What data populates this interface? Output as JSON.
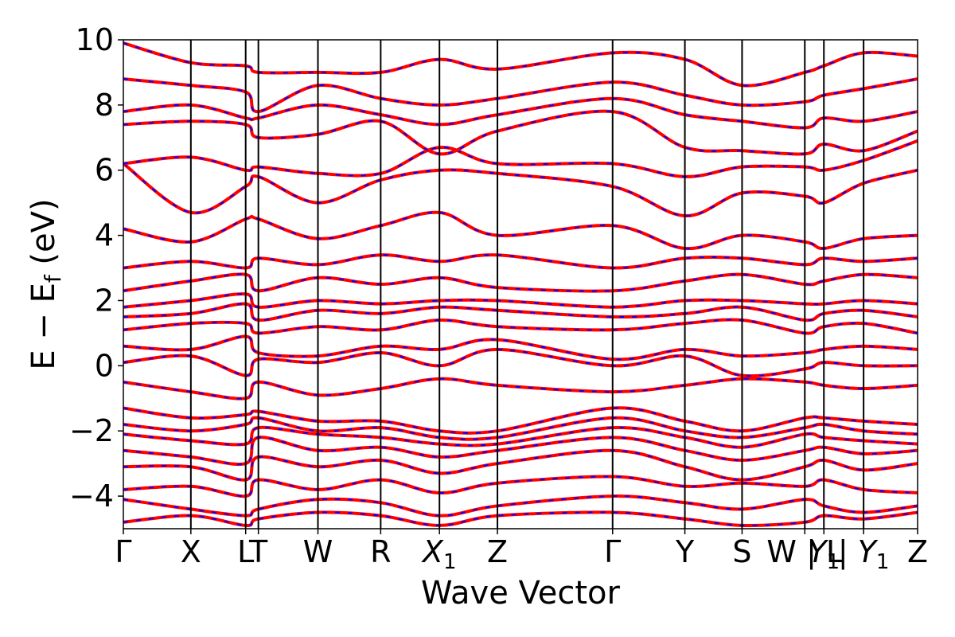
{
  "chart_data": {
    "type": "line",
    "title": "",
    "xlabel": "Wave Vector",
    "ylabel": "E  −  E_f (eV)",
    "ylabel_parts": {
      "main": "E  −  E",
      "sub": "f",
      "unit": " (eV)"
    },
    "ylim": [
      -5,
      10
    ],
    "yticks": [
      -4,
      -2,
      0,
      2,
      4,
      6,
      8,
      10
    ],
    "ytick_labels": [
      "−4",
      "−2",
      "0",
      "2",
      "4",
      "6",
      "8",
      "10"
    ],
    "xlim": [
      0,
      1
    ],
    "kpoints": [
      {
        "label": "Γ",
        "sub": "",
        "x": 0.0
      },
      {
        "label": "X",
        "sub": "",
        "x": 0.085
      },
      {
        "label": "L",
        "sub": "",
        "x": 0.154
      },
      {
        "label": "T",
        "sub": "",
        "x": 0.17
      },
      {
        "label": "W",
        "sub": "",
        "x": 0.245
      },
      {
        "label": "R",
        "sub": "",
        "x": 0.324
      },
      {
        "label": "X",
        "sub": "1",
        "x": 0.398
      },
      {
        "label": "Z",
        "sub": "",
        "x": 0.471
      },
      {
        "label": "Γ",
        "sub": "",
        "x": 0.616
      },
      {
        "label": "Y",
        "sub": "",
        "x": 0.707
      },
      {
        "label": "S",
        "sub": "",
        "x": 0.779
      },
      {
        "label": "W | L",
        "sub": "",
        "x": 0.858
      },
      {
        "label": "Y",
        "sub": "1",
        "x": 0.882
      },
      {
        "label": "| Y",
        "sub": "1",
        "x": 0.932
      },
      {
        "label": "Z",
        "sub": "",
        "x": 1.0
      }
    ],
    "series_styles": [
      {
        "name": "",
        "color": "#ff0000",
        "style": "solid"
      },
      {
        "name": "",
        "color": "#0000ff",
        "style": "dashed"
      }
    ],
    "bands": [
      [
        -4.8,
        -4.6,
        -4.9,
        -4.7,
        -4.5,
        -4.6,
        -4.9,
        -4.6,
        -4.5,
        -4.7,
        -4.9,
        -4.8,
        -4.6,
        -4.7,
        -4.5
      ],
      [
        -4.1,
        -4.4,
        -4.6,
        -4.4,
        -4.1,
        -4.2,
        -4.6,
        -4.3,
        -4.0,
        -4.2,
        -4.4,
        -4.1,
        -4.3,
        -4.5,
        -4.3
      ],
      [
        -3.8,
        -3.7,
        -4.0,
        -3.5,
        -3.8,
        -3.5,
        -3.9,
        -3.6,
        -3.4,
        -3.7,
        -3.6,
        -3.7,
        -3.5,
        -3.8,
        -3.9
      ],
      [
        -3.1,
        -3.1,
        -3.5,
        -2.8,
        -3.1,
        -2.9,
        -3.3,
        -3.0,
        -2.6,
        -3.1,
        -3.5,
        -3.1,
        -2.9,
        -3.2,
        -3.0
      ],
      [
        -2.6,
        -2.8,
        -3.0,
        -2.2,
        -2.6,
        -2.5,
        -2.8,
        -2.6,
        -2.2,
        -2.6,
        -2.9,
        -2.6,
        -2.5,
        -2.7,
        -2.6
      ],
      [
        -2.1,
        -2.3,
        -2.4,
        -1.9,
        -2.1,
        -2.2,
        -2.4,
        -2.4,
        -1.9,
        -2.2,
        -2.5,
        -2.1,
        -2.2,
        -2.3,
        -2.4
      ],
      [
        -1.8,
        -2.0,
        -1.8,
        -1.6,
        -2.0,
        -1.9,
        -2.2,
        -2.2,
        -1.6,
        -2.0,
        -2.2,
        -1.9,
        -1.8,
        -2.0,
        -2.1
      ],
      [
        -1.3,
        -1.6,
        -1.5,
        -1.4,
        -1.7,
        -1.7,
        -2.0,
        -2.0,
        -1.3,
        -1.7,
        -2.0,
        -1.6,
        -1.6,
        -1.7,
        -1.8
      ],
      [
        -0.5,
        -0.8,
        -1.0,
        -0.5,
        -0.9,
        -0.7,
        -0.4,
        -0.6,
        -0.8,
        -0.6,
        -0.4,
        -0.5,
        -0.6,
        -0.7,
        -0.6
      ],
      [
        0.1,
        0.3,
        -0.3,
        0.2,
        0.1,
        0.4,
        0.0,
        0.5,
        0.0,
        0.3,
        -0.3,
        -0.1,
        0.1,
        0.0,
        0.0
      ],
      [
        0.6,
        0.5,
        0.9,
        0.4,
        0.3,
        0.6,
        0.5,
        0.8,
        0.2,
        0.5,
        0.3,
        0.4,
        0.5,
        0.6,
        0.5
      ],
      [
        1.1,
        1.3,
        1.3,
        1.0,
        1.2,
        1.1,
        1.4,
        1.2,
        1.1,
        1.3,
        1.4,
        1.0,
        1.2,
        1.3,
        1.0
      ],
      [
        1.5,
        1.6,
        1.9,
        1.4,
        1.7,
        1.6,
        1.8,
        1.7,
        1.5,
        1.6,
        1.8,
        1.4,
        1.6,
        1.7,
        1.5
      ],
      [
        1.8,
        2.0,
        2.2,
        1.8,
        2.0,
        1.9,
        2.0,
        2.0,
        1.8,
        2.0,
        2.0,
        1.9,
        1.9,
        2.0,
        1.9
      ],
      [
        2.3,
        2.6,
        2.8,
        2.3,
        2.7,
        2.5,
        2.7,
        2.4,
        2.3,
        2.6,
        2.8,
        2.5,
        2.6,
        2.8,
        2.7
      ],
      [
        3.0,
        3.2,
        3.0,
        3.3,
        3.1,
        3.4,
        3.2,
        3.4,
        3.0,
        3.3,
        3.3,
        3.1,
        3.3,
        3.2,
        3.3
      ],
      [
        4.2,
        3.8,
        4.5,
        4.5,
        3.9,
        4.3,
        4.7,
        4.0,
        4.3,
        3.6,
        4.0,
        3.8,
        3.6,
        3.9,
        4.0
      ],
      [
        6.2,
        4.7,
        5.5,
        5.8,
        5.0,
        5.7,
        6.0,
        5.9,
        5.5,
        4.6,
        5.3,
        5.2,
        5.0,
        5.6,
        6.0
      ],
      [
        6.2,
        6.4,
        6.0,
        6.1,
        5.9,
        5.9,
        6.7,
        6.2,
        6.2,
        5.8,
        6.1,
        6.1,
        6.0,
        6.3,
        6.9
      ],
      [
        7.4,
        7.5,
        7.4,
        7.0,
        7.1,
        7.5,
        6.5,
        7.2,
        7.8,
        6.7,
        6.6,
        6.5,
        6.8,
        6.6,
        7.2
      ],
      [
        7.8,
        8.0,
        7.6,
        7.6,
        8.0,
        7.7,
        7.4,
        7.7,
        8.2,
        7.7,
        7.5,
        7.3,
        7.6,
        7.5,
        7.8
      ],
      [
        8.8,
        8.6,
        8.4,
        7.8,
        8.6,
        8.2,
        8.0,
        8.2,
        8.7,
        8.3,
        8.0,
        8.1,
        8.3,
        8.5,
        8.8
      ],
      [
        9.9,
        9.3,
        9.2,
        9.0,
        9.0,
        9.0,
        9.4,
        9.1,
        9.6,
        9.4,
        8.6,
        9.0,
        9.2,
        9.6,
        9.5
      ]
    ]
  }
}
